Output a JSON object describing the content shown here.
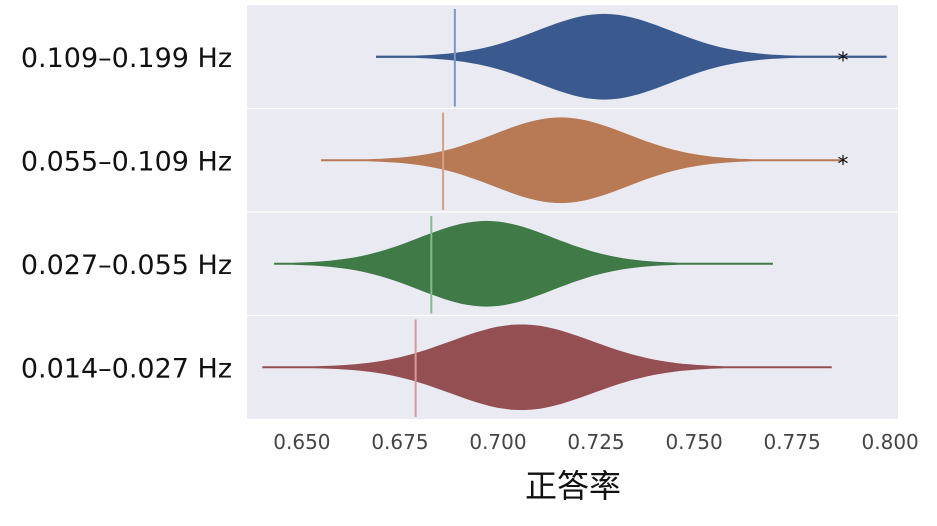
{
  "chart_data": {
    "type": "violin",
    "orientation": "horizontal",
    "xlabel": "正答率",
    "ylabel": "",
    "xlim": [
      0.636,
      0.802
    ],
    "xticks": [
      "0.650",
      "0.675",
      "0.700",
      "0.725",
      "0.750",
      "0.775",
      "0.800"
    ],
    "xtick_values": [
      0.65,
      0.675,
      0.7,
      0.725,
      0.75,
      0.775,
      0.8
    ],
    "grid": true,
    "background": "#EAEAF2",
    "categories": [
      "0.109–0.199 Hz",
      "0.055–0.109 Hz",
      "0.027–0.055 Hz",
      "0.014–0.027 Hz"
    ],
    "series": [
      {
        "category": "0.109–0.199 Hz",
        "color": "#3A5A8F",
        "min": 0.669,
        "max": 0.799,
        "mode": 0.727,
        "spread": 0.017,
        "threshold": 0.689,
        "threshold_color": "#7A97C2",
        "significance": "*"
      },
      {
        "category": "0.055–0.109 Hz",
        "color": "#B87A55",
        "min": 0.655,
        "max": 0.788,
        "mode": 0.716,
        "spread": 0.017,
        "threshold": 0.686,
        "threshold_color": "#D6A080",
        "significance": "*"
      },
      {
        "category": "0.027–0.055 Hz",
        "color": "#3F7A47",
        "min": 0.643,
        "max": 0.77,
        "mode": 0.697,
        "spread": 0.017,
        "threshold": 0.683,
        "threshold_color": "#86B98C",
        "significance": ""
      },
      {
        "category": "0.014–0.027 Hz",
        "color": "#944F52",
        "min": 0.64,
        "max": 0.785,
        "mode": 0.706,
        "spread": 0.018,
        "threshold": 0.679,
        "threshold_color": "#D49A9C",
        "significance": ""
      }
    ]
  }
}
